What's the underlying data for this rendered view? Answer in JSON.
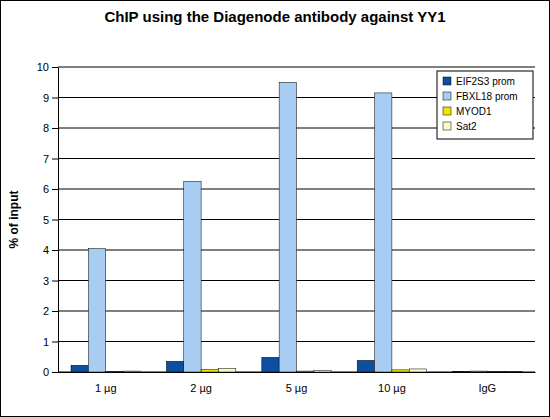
{
  "chart_data": {
    "type": "bar",
    "title": "ChIP using the Diagenode antibody against YY1",
    "y_label": "% of input",
    "categories": [
      "1 µg",
      "2 µg",
      "5 µg",
      "10 µg",
      "IgG"
    ],
    "series": [
      {
        "name": "EIF2S3 prom",
        "color": "#0b4fa0",
        "values": [
          0.22,
          0.35,
          0.48,
          0.38,
          0.02
        ]
      },
      {
        "name": "FBXL18 prom",
        "color": "#a9cdf2",
        "values": [
          4.05,
          6.25,
          9.5,
          9.15,
          0.03
        ]
      },
      {
        "name": "MYOD1",
        "color": "#f2e400",
        "values": [
          0.02,
          0.08,
          0.03,
          0.07,
          0.01
        ]
      },
      {
        "name": "Sat2",
        "color": "#fcf8c8",
        "values": [
          0.03,
          0.12,
          0.05,
          0.1,
          0.01
        ]
      }
    ],
    "ylim": [
      0,
      10
    ],
    "yticks": [
      0,
      1,
      2,
      3,
      4,
      5,
      6,
      7,
      8,
      9,
      10
    ],
    "grid": true,
    "legend": "top-right"
  }
}
